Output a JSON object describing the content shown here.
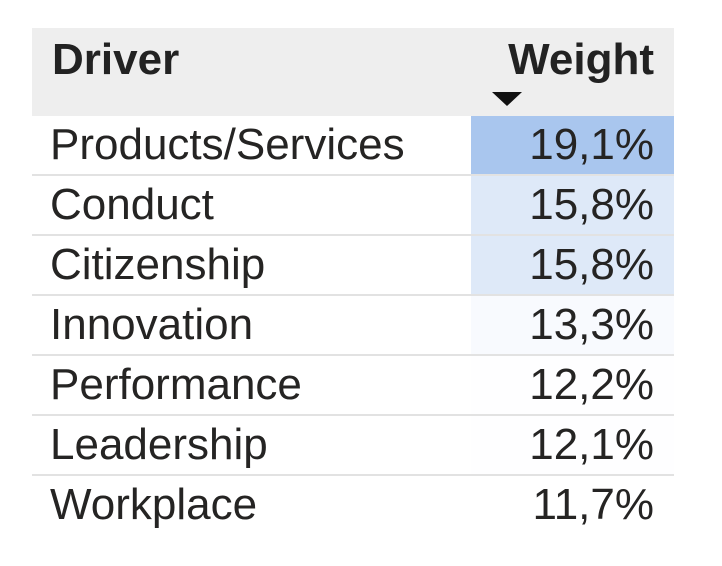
{
  "chart_data": {
    "type": "table",
    "columns": [
      "Driver",
      "Weight"
    ],
    "sort": {
      "column": "Weight",
      "direction": "descending"
    },
    "rows": [
      {
        "driver": "Products/Services",
        "weight": "19,1%",
        "value": 19.1
      },
      {
        "driver": "Conduct",
        "weight": "15,8%",
        "value": 15.8
      },
      {
        "driver": "Citizenship",
        "weight": "15,8%",
        "value": 15.8
      },
      {
        "driver": "Innovation",
        "weight": "13,3%",
        "value": 13.3
      },
      {
        "driver": "Performance",
        "weight": "12,2%",
        "value": 12.2
      },
      {
        "driver": "Leadership",
        "weight": "12,1%",
        "value": 12.1
      },
      {
        "driver": "Workplace",
        "weight": "11,7%",
        "value": 11.7
      }
    ],
    "conditional_format": {
      "min_color": "#ffffff",
      "max_color": "#a9c6ee",
      "min_value": 11.7,
      "max_value": 19.1
    },
    "colors": {
      "header_background": "#eeeeee",
      "row_divider": "#e2e2e2",
      "text": "#252423"
    }
  }
}
